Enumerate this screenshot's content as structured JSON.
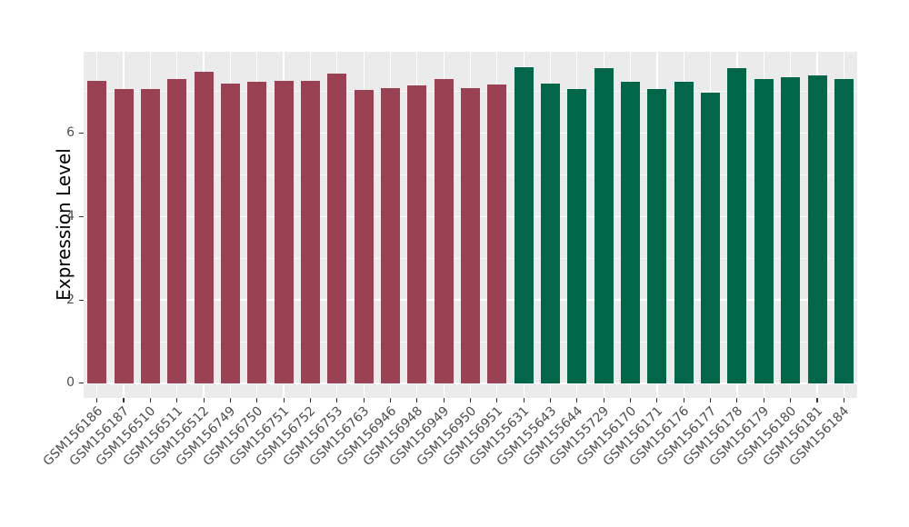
{
  "chart_data": {
    "type": "bar",
    "title": "",
    "xlabel": "",
    "ylabel": "Expression Level",
    "ylim": [
      -0.35,
      7.95
    ],
    "yticks": [
      0,
      2,
      4,
      6
    ],
    "yticks_minor": [
      1,
      3,
      5,
      7
    ],
    "grid": "on",
    "legend_position": "none",
    "panel_background": "#EBEBEB",
    "gridline_color": "#FFFFFF",
    "tick_color": "#333333",
    "axis_text_color": "#4D4D4D",
    "series": [
      {
        "name": "maroon-group",
        "color": "#9A4153",
        "categories": [
          "GSM156186",
          "GSM156187",
          "GSM156510",
          "GSM156511",
          "GSM156512",
          "GSM156749",
          "GSM156750",
          "GSM156751",
          "GSM156752",
          "GSM156753",
          "GSM156763",
          "GSM156946",
          "GSM156948",
          "GSM156949",
          "GSM156950",
          "GSM156951"
        ],
        "values": [
          7.25,
          7.06,
          7.06,
          7.3,
          7.47,
          7.19,
          7.23,
          7.25,
          7.25,
          7.43,
          7.04,
          7.07,
          7.14,
          7.3,
          7.08,
          7.17
        ]
      },
      {
        "name": "green-group",
        "color": "#026649",
        "categories": [
          "GSM155631",
          "GSM155643",
          "GSM155644",
          "GSM155729",
          "GSM156170",
          "GSM156171",
          "GSM156176",
          "GSM156177",
          "GSM156178",
          "GSM156179",
          "GSM156180",
          "GSM156181",
          "GSM156184"
        ],
        "values": [
          7.58,
          7.19,
          7.06,
          7.55,
          7.24,
          7.05,
          7.23,
          6.96,
          7.55,
          7.3,
          7.35,
          7.38,
          7.3
        ]
      }
    ]
  }
}
